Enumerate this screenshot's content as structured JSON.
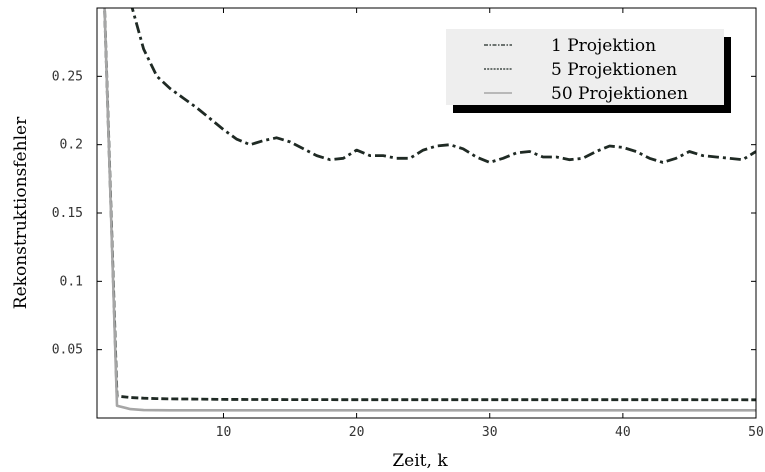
{
  "chart_data": {
    "type": "line",
    "title": "",
    "xlabel": "Zeit, k",
    "ylabel": "Rekonstruktionsfehler",
    "xlim": [
      0.5,
      50
    ],
    "ylim": [
      0,
      0.3
    ],
    "x_ticks": [
      10,
      20,
      30,
      40,
      50
    ],
    "x_tick_labels": [
      "10",
      "20",
      "30",
      "40",
      "50"
    ],
    "y_ticks": [
      0.05,
      0.1,
      0.15,
      0.2,
      0.25
    ],
    "y_tick_labels": [
      "0.05",
      "0.1",
      "0.15",
      "0.2",
      "0.25"
    ],
    "grid": false,
    "legend_position": "top-right",
    "series": [
      {
        "name": "1 Projektion",
        "style": "dash-dot",
        "color": "#1f2a24",
        "x": [
          3,
          4,
          5,
          6,
          7,
          8,
          9,
          10,
          11,
          12,
          13,
          14,
          15,
          16,
          17,
          18,
          19,
          20,
          21,
          22,
          23,
          24,
          25,
          26,
          27,
          28,
          29,
          30,
          31,
          32,
          33,
          34,
          35,
          36,
          37,
          38,
          39,
          40,
          41,
          42,
          43,
          44,
          45,
          46,
          47,
          48,
          49,
          50
        ],
        "values": [
          0.305,
          0.27,
          0.25,
          0.241,
          0.234,
          0.227,
          0.219,
          0.211,
          0.204,
          0.2,
          0.203,
          0.205,
          0.202,
          0.197,
          0.192,
          0.189,
          0.19,
          0.196,
          0.192,
          0.192,
          0.19,
          0.19,
          0.196,
          0.199,
          0.2,
          0.197,
          0.191,
          0.187,
          0.19,
          0.194,
          0.195,
          0.191,
          0.191,
          0.189,
          0.19,
          0.195,
          0.199,
          0.198,
          0.195,
          0.19,
          0.187,
          0.19,
          0.195,
          0.192,
          0.191,
          0.19,
          0.189,
          0.195
        ]
      },
      {
        "name": "5 Projektionen",
        "style": "dashed",
        "color": "#1f2a24",
        "x": [
          1,
          2,
          3,
          4,
          5,
          6,
          8,
          10,
          15,
          20,
          25,
          30,
          35,
          40,
          45,
          50
        ],
        "values": [
          0.32,
          0.016,
          0.015,
          0.0145,
          0.0142,
          0.014,
          0.0138,
          0.0136,
          0.0135,
          0.0134,
          0.0134,
          0.0134,
          0.0134,
          0.0134,
          0.0134,
          0.0133
        ]
      },
      {
        "name": "50 Projektionen",
        "style": "solid",
        "color": "#a6a6a6",
        "x": [
          1,
          2,
          3,
          4,
          5,
          6,
          8,
          10,
          15,
          20,
          25,
          30,
          35,
          40,
          45,
          50
        ],
        "values": [
          0.32,
          0.009,
          0.0065,
          0.0058,
          0.0057,
          0.0056,
          0.0056,
          0.0056,
          0.0056,
          0.0056,
          0.0056,
          0.0056,
          0.0056,
          0.0056,
          0.0056,
          0.0056
        ]
      }
    ]
  }
}
